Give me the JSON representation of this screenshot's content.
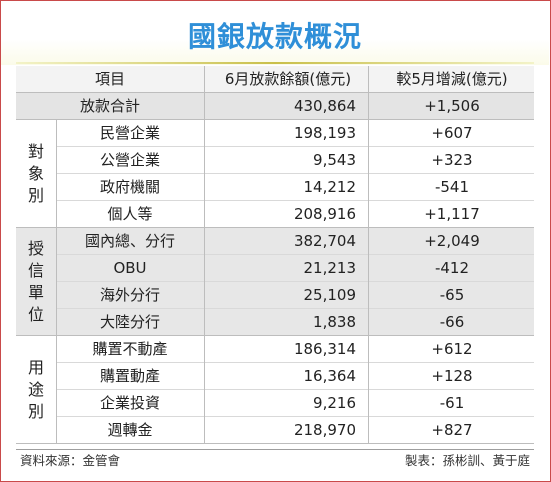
{
  "title": "國銀放款概況",
  "header": {
    "item": "項目",
    "balance": "6月放款餘額(億元)",
    "change": "較5月增減(億元)"
  },
  "total": {
    "label": "放款合計",
    "balance": "430,864",
    "change": "+1,506"
  },
  "groups": [
    {
      "label": "對象別",
      "rows": [
        {
          "label": "民營企業",
          "balance": "198,193",
          "change": "+607"
        },
        {
          "label": "公營企業",
          "balance": "9,543",
          "change": "+323"
        },
        {
          "label": "政府機關",
          "balance": "14,212",
          "change": "-541"
        },
        {
          "label": "個人等",
          "balance": "208,916",
          "change": "+1,117"
        }
      ]
    },
    {
      "label": "授信單位",
      "rows": [
        {
          "label": "國內總、分行",
          "balance": "382,704",
          "change": "+2,049"
        },
        {
          "label": "OBU",
          "balance": "21,213",
          "change": "-412"
        },
        {
          "label": "海外分行",
          "balance": "25,109",
          "change": "-65"
        },
        {
          "label": "大陸分行",
          "balance": "1,838",
          "change": "-66"
        }
      ]
    },
    {
      "label": "用途別",
      "rows": [
        {
          "label": "購置不動產",
          "balance": "186,314",
          "change": "+612"
        },
        {
          "label": "購置動產",
          "balance": "16,364",
          "change": "+128"
        },
        {
          "label": "企業投資",
          "balance": "9,216",
          "change": "-61"
        },
        {
          "label": "週轉金",
          "balance": "218,970",
          "change": "+827"
        }
      ]
    }
  ],
  "footer": {
    "source": "資料來源：金管會",
    "credit": "製表：孫彬訓、黃于庭"
  }
}
